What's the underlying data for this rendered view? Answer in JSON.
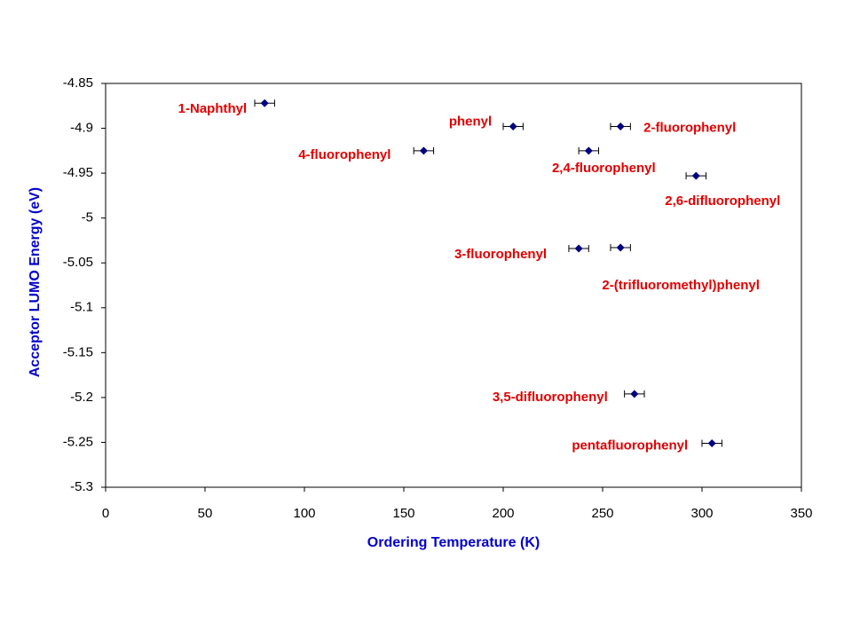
{
  "chart_data": {
    "type": "scatter",
    "x_label": "Ordering Temperature (K)",
    "y_label": "Acceptor LUMO Energy (eV)",
    "point_labels": [
      "1-Naphthyl",
      "phenyl",
      "2-fluorophenyl",
      "4-fluorophenyl",
      "2,4-fluorophenyl",
      "2,6-difluorophenyl",
      "3-fluorophenyl",
      "2-(trifluoromethyl)phenyl",
      "3,5-difluorophenyl",
      "pentafluorophenyl"
    ],
    "x": [
      80,
      205,
      259,
      160,
      243,
      297,
      238,
      259,
      266,
      305
    ],
    "xerr": [
      5,
      5,
      5,
      5,
      5,
      5,
      5,
      5,
      5,
      5
    ],
    "values": [
      -4.872,
      -4.898,
      -4.898,
      -4.925,
      -4.925,
      -4.953,
      -5.034,
      -5.033,
      -5.196,
      -5.251
    ],
    "color": "#000080",
    "label_color": "#e00000",
    "axis_title_color": "#0000cc",
    "xlim": [
      0,
      350
    ],
    "xticks": [
      0,
      50,
      100,
      150,
      200,
      250,
      300,
      350
    ],
    "ylim": [
      -5.3,
      -4.85
    ],
    "yticks": [
      -4.85,
      -4.9,
      -4.95,
      -5,
      -5.05,
      -5.1,
      -5.15,
      -5.2,
      -5.25,
      -5.3
    ],
    "grid": false
  }
}
